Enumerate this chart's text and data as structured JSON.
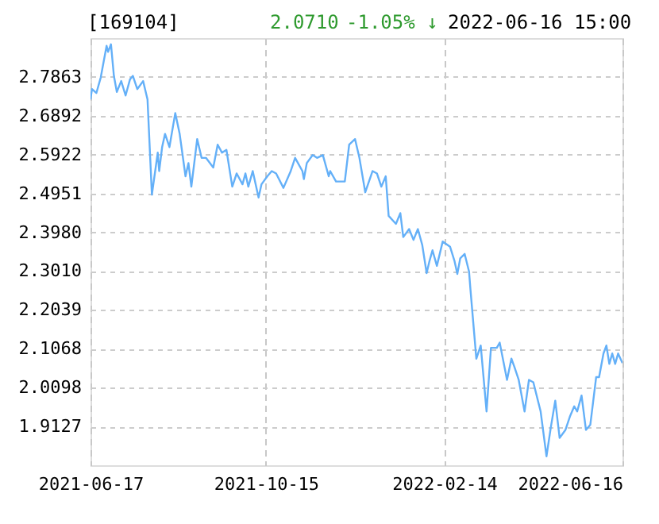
{
  "chart_data": {
    "type": "line",
    "title": "[169104]",
    "annotations": [
      "2.0710",
      "-1.05% ↓",
      "2022-06-16 15:00"
    ],
    "x": [
      "2021-06-17",
      "2021-06-18",
      "2021-06-21",
      "2021-06-24",
      "2021-06-28",
      "2021-06-29",
      "2021-07-01",
      "2021-07-03",
      "2021-07-05",
      "2021-07-08",
      "2021-07-11",
      "2021-07-14",
      "2021-07-16",
      "2021-07-19",
      "2021-07-23",
      "2021-07-26",
      "2021-07-29",
      "2021-08-02",
      "2021-08-03",
      "2021-08-05",
      "2021-08-07",
      "2021-08-10",
      "2021-08-14",
      "2021-08-17",
      "2021-08-21",
      "2021-08-23",
      "2021-08-25",
      "2021-08-29",
      "2021-09-01",
      "2021-09-04",
      "2021-09-09",
      "2021-09-12",
      "2021-09-15",
      "2021-09-18",
      "2021-09-22",
      "2021-09-25",
      "2021-09-29",
      "2021-10-01",
      "2021-10-03",
      "2021-10-06",
      "2021-10-10",
      "2021-10-12",
      "2021-10-16",
      "2021-10-19",
      "2021-10-22",
      "2021-10-27",
      "2021-11-01",
      "2021-11-04",
      "2021-11-09",
      "2021-11-10",
      "2021-11-12",
      "2021-11-16",
      "2021-11-19",
      "2021-11-23",
      "2021-11-27",
      "2021-11-28",
      "2021-12-02",
      "2021-12-08",
      "2021-12-11",
      "2021-12-15",
      "2021-12-18",
      "2021-12-22",
      "2021-12-27",
      "2021-12-30",
      "2022-01-02",
      "2022-01-05",
      "2022-01-07",
      "2022-01-12",
      "2022-01-15",
      "2022-01-17",
      "2022-01-21",
      "2022-01-24",
      "2022-01-27",
      "2022-01-30",
      "2022-02-02",
      "2022-02-04",
      "2022-02-06",
      "2022-02-09",
      "2022-02-13",
      "2022-02-18",
      "2022-02-21",
      "2022-02-23",
      "2022-02-25",
      "2022-02-28",
      "2022-03-03",
      "2022-03-04",
      "2022-03-08",
      "2022-03-11",
      "2022-03-15",
      "2022-03-18",
      "2022-03-22",
      "2022-03-24",
      "2022-03-29",
      "2022-04-01",
      "2022-04-03",
      "2022-04-06",
      "2022-04-10",
      "2022-04-13",
      "2022-04-16",
      "2022-04-21",
      "2022-04-25",
      "2022-04-28",
      "2022-05-01",
      "2022-05-04",
      "2022-05-08",
      "2022-05-11",
      "2022-05-14",
      "2022-05-16",
      "2022-05-19",
      "2022-05-22",
      "2022-05-25",
      "2022-05-29",
      "2022-05-31",
      "2022-06-03",
      "2022-06-05",
      "2022-06-07",
      "2022-06-09",
      "2022-06-11",
      "2022-06-13",
      "2022-06-16"
    ],
    "series": [
      {
        "color": "#64b0f8",
        "values": [
          2.73,
          2.756,
          2.746,
          2.785,
          2.864,
          2.849,
          2.868,
          2.789,
          2.749,
          2.776,
          2.74,
          2.78,
          2.789,
          2.756,
          2.776,
          2.73,
          2.492,
          2.597,
          2.551,
          2.611,
          2.644,
          2.611,
          2.696,
          2.644,
          2.538,
          2.571,
          2.512,
          2.631,
          2.584,
          2.584,
          2.56,
          2.617,
          2.597,
          2.604,
          2.512,
          2.545,
          2.518,
          2.545,
          2.512,
          2.551,
          2.485,
          2.518,
          2.538,
          2.551,
          2.545,
          2.509,
          2.551,
          2.584,
          2.551,
          2.531,
          2.571,
          2.591,
          2.584,
          2.591,
          2.538,
          2.551,
          2.525,
          2.525,
          2.617,
          2.631,
          2.584,
          2.498,
          2.551,
          2.545,
          2.512,
          2.538,
          2.439,
          2.419,
          2.446,
          2.386,
          2.406,
          2.379,
          2.406,
          2.366,
          2.296,
          2.327,
          2.353,
          2.314,
          2.375,
          2.362,
          2.327,
          2.294,
          2.333,
          2.344,
          2.3,
          2.254,
          2.082,
          2.115,
          1.95,
          2.109,
          2.109,
          2.122,
          2.029,
          2.082,
          2.062,
          2.029,
          1.95,
          2.029,
          2.023,
          1.95,
          1.838,
          1.911,
          1.977,
          1.884,
          1.904,
          1.937,
          1.963,
          1.95,
          1.99,
          1.904,
          1.917,
          2.036,
          2.036,
          2.095,
          2.115,
          2.069,
          2.095,
          2.069,
          2.095,
          2.071
        ]
      }
    ],
    "xlim": [
      "2021-06-17",
      "2022-06-16"
    ],
    "xticks": [
      "2021-06-17",
      "2021-10-15",
      "2022-02-14",
      "2022-06-16"
    ],
    "ylim": [
      1.8156,
      2.8834
    ],
    "yticks": [
      1.9127,
      2.0098,
      2.1068,
      2.2039,
      {
        "value": 2.301,
        "label": "2.3010"
      },
      {
        "value": 2.398,
        "label": "2.3980"
      },
      2.4951,
      2.5922,
      2.6892,
      2.7863
    ],
    "grid": true,
    "marker": "none",
    "line_style": "solid"
  }
}
